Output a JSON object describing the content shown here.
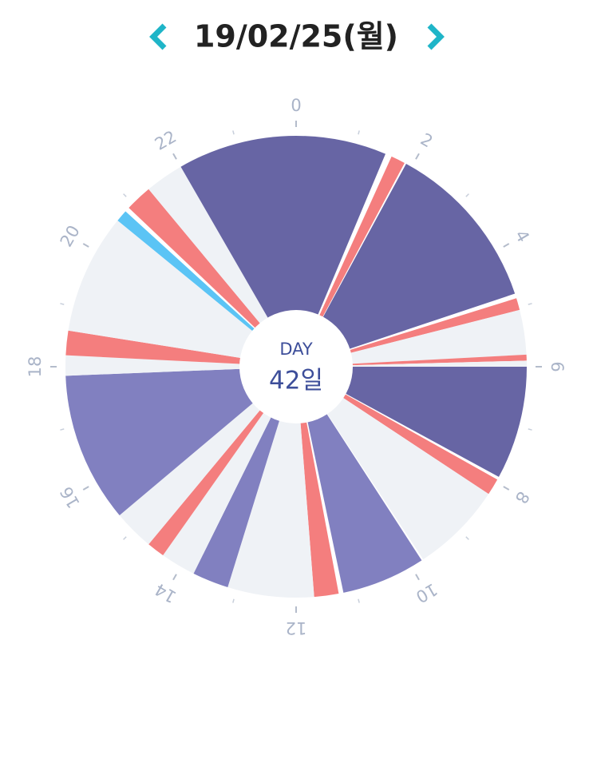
{
  "header": {
    "title": "19/02/25(월)"
  },
  "chart_data": {
    "type": "clock",
    "center_label": "DAY",
    "center_value": "42일",
    "xlim": [
      0,
      24
    ],
    "xticks": [
      0,
      2,
      4,
      6,
      8,
      10,
      12,
      14,
      16,
      18,
      20,
      22
    ],
    "minor_ticks": [
      1,
      3,
      5,
      7,
      9,
      11,
      13,
      15,
      17,
      19,
      21,
      23
    ],
    "segments": [
      {
        "start": 0,
        "end": 1.52,
        "color": "#6765a4"
      },
      {
        "start": 1.63,
        "end": 1.87,
        "color": "#f47e7e"
      },
      {
        "start": 1.9,
        "end": 4.77,
        "color": "#6765a4"
      },
      {
        "start": 4.85,
        "end": 5.05,
        "color": "#f47e7e"
      },
      {
        "start": 5.05,
        "end": 5.8,
        "color": "#eff2f6"
      },
      {
        "start": 5.8,
        "end": 5.9,
        "color": "#f47e7e"
      },
      {
        "start": 5.9,
        "end": 6.0,
        "color": "#eff2f6"
      },
      {
        "start": 6.0,
        "end": 7.9,
        "color": "#6765a4"
      },
      {
        "start": 7.95,
        "end": 8.23,
        "color": "#f47e7e"
      },
      {
        "start": 8.23,
        "end": 9.77,
        "color": "#eff2f6"
      },
      {
        "start": 9.8,
        "end": 11.21,
        "color": "#8180c0"
      },
      {
        "start": 11.29,
        "end": 11.7,
        "color": "#f47e7e"
      },
      {
        "start": 11.7,
        "end": 13.15,
        "color": "#eff2f6"
      },
      {
        "start": 13.15,
        "end": 13.76,
        "color": "#8180c0"
      },
      {
        "start": 13.76,
        "end": 14.35,
        "color": "#eff2f6"
      },
      {
        "start": 14.35,
        "end": 14.65,
        "color": "#f47e7e"
      },
      {
        "start": 14.65,
        "end": 15.33,
        "color": "#eff2f6"
      },
      {
        "start": 15.33,
        "end": 17.85,
        "color": "#8180c0"
      },
      {
        "start": 17.85,
        "end": 18.19,
        "color": "#eff2f6"
      },
      {
        "start": 18.19,
        "end": 18.6,
        "color": "#f47e7e"
      },
      {
        "start": 18.6,
        "end": 20.62,
        "color": "#eff2f6"
      },
      {
        "start": 20.62,
        "end": 20.82,
        "color": "#5bc4f5"
      },
      {
        "start": 20.9,
        "end": 21.35,
        "color": "#f47e7e"
      },
      {
        "start": 21.35,
        "end": 22.0,
        "color": "#eff2f6"
      },
      {
        "start": 22.0,
        "end": 24,
        "color": "#6765a4"
      }
    ]
  }
}
